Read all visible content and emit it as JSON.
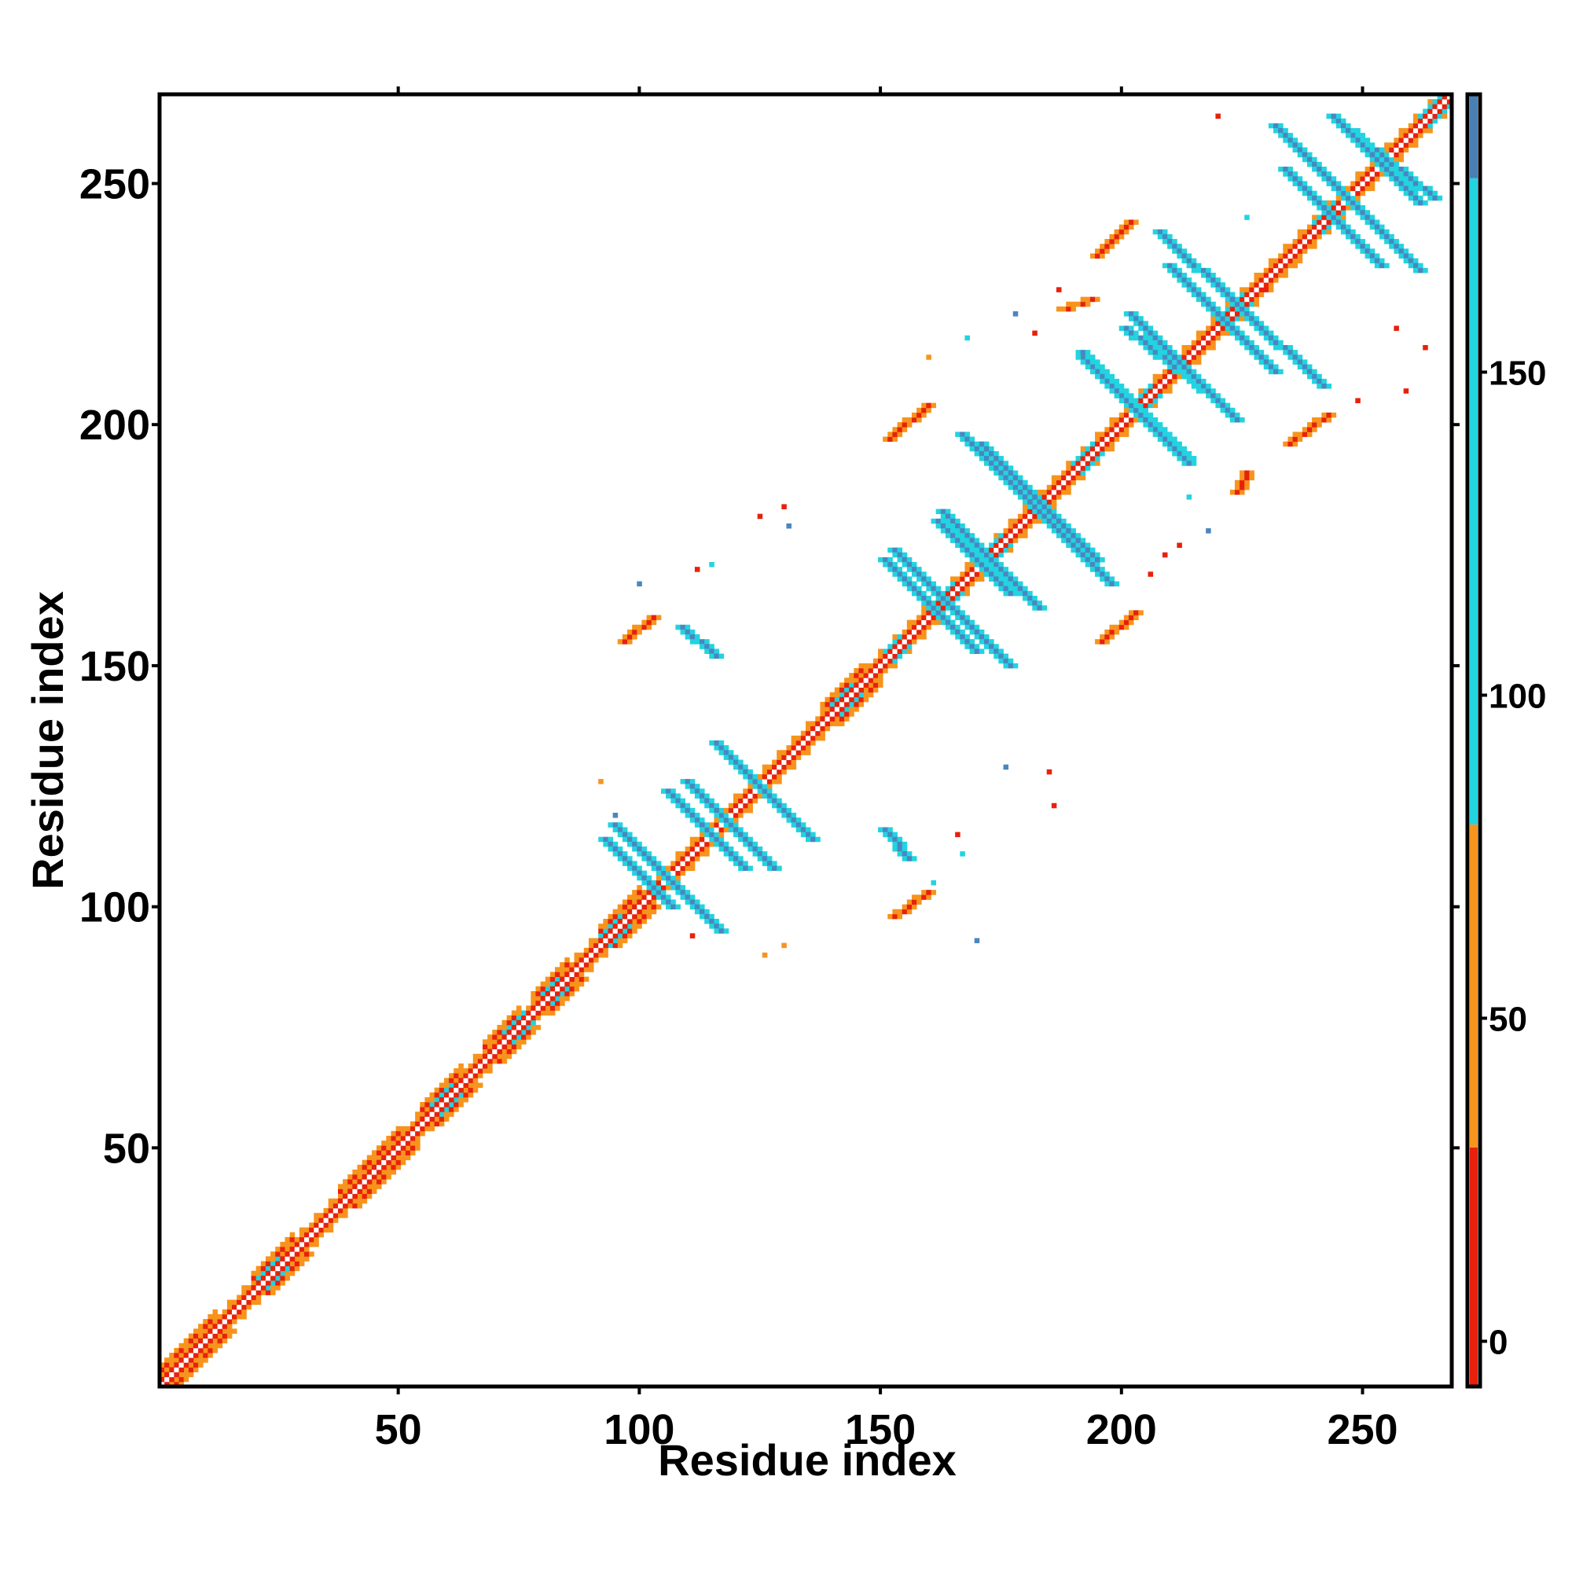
{
  "chart_data": {
    "type": "heatmap",
    "title": "",
    "xlabel": "Residue index",
    "ylabel": "Residue index",
    "xlim": [
      1,
      268
    ],
    "ylim": [
      1,
      268
    ],
    "x_ticks": [
      50,
      100,
      150,
      200,
      250
    ],
    "y_ticks": [
      50,
      100,
      150,
      200,
      250
    ],
    "colorbar": {
      "ticks": [
        0,
        50,
        100,
        150
      ],
      "range": [
        -7,
        193
      ],
      "bands": [
        {
          "from": -7,
          "to": 30,
          "color": "#e8200c"
        },
        {
          "from": 30,
          "to": 80,
          "color": "#f7941d"
        },
        {
          "from": 80,
          "to": 180,
          "color": "#22d3e0"
        },
        {
          "from": 180,
          "to": 193,
          "color": "#4a7fb5"
        }
      ]
    },
    "colors": {
      "red": "#e8200c",
      "orange": "#f7941d",
      "cyan": "#22d3e0",
      "steelblue": "#4a86bf"
    },
    "patterns": {
      "diagonal": [
        1,
        268
      ],
      "helix_blocks": [
        [
          1,
          12
        ],
        [
          20,
          28
        ],
        [
          38,
          50
        ],
        [
          55,
          63
        ],
        [
          68,
          75
        ],
        [
          78,
          85
        ],
        [
          92,
          100
        ],
        [
          138,
          146
        ]
      ],
      "antidiagonal_blue": [
        {
          "center": [
            106,
            106
          ],
          "len": 11
        },
        {
          "center": [
            119,
            117
          ],
          "len": 9
        },
        {
          "center": [
            126,
            124
          ],
          "len": 10
        },
        {
          "center": [
            165,
            162
          ],
          "len": 12
        },
        {
          "center": [
            173,
            172
          ],
          "len": 10
        },
        {
          "center": [
            183,
            184
          ],
          "len": 12
        },
        {
          "center": [
            203,
            203
          ],
          "len": 11
        },
        {
          "center": [
            213,
            212
          ],
          "len": 11
        },
        {
          "center": [
            221,
            222
          ],
          "len": 11
        },
        {
          "center": [
            244,
            243
          ],
          "len": 10
        },
        {
          "center": [
            253,
            255
          ],
          "len": 9
        }
      ],
      "parallel_blue": [
        {
          "from": [
            93,
            114
          ],
          "to": [
            107,
            100
          ]
        },
        {
          "from": [
            106,
            124
          ],
          "to": [
            122,
            108
          ]
        },
        {
          "from": [
            117,
            133
          ],
          "to": [
            133,
            117
          ]
        },
        {
          "from": [
            151,
            172
          ],
          "to": [
            170,
            153
          ]
        },
        {
          "from": [
            162,
            180
          ],
          "to": [
            177,
            165
          ]
        },
        {
          "from": [
            167,
            198
          ],
          "to": [
            198,
            167
          ]
        },
        {
          "from": [
            192,
            215
          ],
          "to": [
            214,
            193
          ]
        },
        {
          "from": [
            201,
            220
          ],
          "to": [
            220,
            205
          ]
        },
        {
          "from": [
            208,
            240
          ],
          "to": [
            242,
            208
          ]
        },
        {
          "from": [
            232,
            262
          ],
          "to": [
            262,
            232
          ]
        },
        {
          "from": [
            245,
            263
          ],
          "to": [
            265,
            247
          ]
        },
        {
          "from": [
            109,
            158
          ],
          "to": [
            116,
            152
          ]
        },
        {
          "from": [
            151,
            116
          ],
          "to": [
            156,
            110
          ]
        }
      ],
      "red_patches": [
        {
          "from": [
            97,
            155
          ],
          "to": [
            103,
            160
          ]
        },
        {
          "from": [
            153,
            98
          ],
          "to": [
            160,
            103
          ]
        },
        {
          "from": [
            152,
            197
          ],
          "to": [
            160,
            204
          ]
        },
        {
          "from": [
            196,
            155
          ],
          "to": [
            203,
            161
          ]
        },
        {
          "from": [
            195,
            235
          ],
          "to": [
            202,
            242
          ]
        },
        {
          "from": [
            235,
            196
          ],
          "to": [
            243,
            202
          ]
        },
        {
          "from": [
            188,
            224
          ],
          "to": [
            194,
            226
          ]
        },
        {
          "from": [
            224,
            186
          ],
          "to": [
            226,
            190
          ]
        }
      ]
    }
  }
}
